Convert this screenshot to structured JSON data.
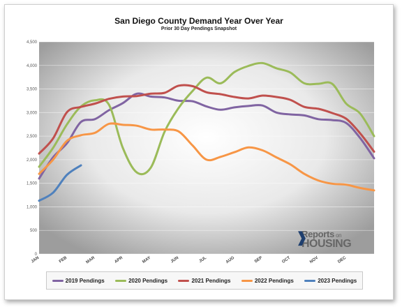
{
  "chart_data": {
    "type": "line",
    "title": "San Diego County Demand Year Over Year",
    "subtitle": "Prior 30 Day Pendings Snapshot",
    "ylim": [
      0,
      4500
    ],
    "yticks": [
      "0",
      "500",
      "1,000",
      "1,500",
      "2,000",
      "2,500",
      "3,000",
      "3,500",
      "4,000",
      "4,500"
    ],
    "xticks": [
      "JAN",
      "FEB",
      "MAR",
      "APR",
      "MAY",
      "JUN",
      "JUL",
      "AUG",
      "SEP",
      "OCT",
      "NOV",
      "DEC"
    ],
    "x_range": [
      0,
      12
    ],
    "grid": true,
    "legend_position": "bottom",
    "series": [
      {
        "name": "2019 Pendings",
        "color": "#8064A2",
        "x": [
          0,
          0.5,
          1,
          1.5,
          2,
          2.5,
          3,
          3.5,
          4,
          4.5,
          5,
          5.5,
          6,
          6.5,
          7,
          7.5,
          8,
          8.5,
          9,
          9.5,
          10,
          10.5,
          11,
          11.5,
          12
        ],
        "values": [
          1600,
          2050,
          2350,
          2800,
          2860,
          3050,
          3200,
          3400,
          3340,
          3320,
          3250,
          3240,
          3130,
          3060,
          3110,
          3140,
          3150,
          3000,
          2960,
          2940,
          2860,
          2840,
          2780,
          2460,
          2030
        ]
      },
      {
        "name": "2020 Pendings",
        "color": "#9BBB59",
        "x": [
          0,
          0.5,
          1,
          1.5,
          2,
          2.5,
          3,
          3.5,
          4,
          4.5,
          5,
          5.5,
          6,
          6.5,
          7,
          7.5,
          8,
          8.5,
          9,
          9.5,
          10,
          10.5,
          11,
          11.5,
          12
        ],
        "values": [
          1850,
          2250,
          2750,
          3130,
          3260,
          3170,
          2250,
          1730,
          1830,
          2600,
          3100,
          3460,
          3740,
          3620,
          3860,
          3990,
          4050,
          3940,
          3850,
          3620,
          3610,
          3610,
          3190,
          2980,
          2500
        ]
      },
      {
        "name": "2021 Pendings",
        "color": "#C0504D",
        "x": [
          0,
          0.5,
          1,
          1.5,
          2,
          2.5,
          3,
          3.5,
          4,
          4.5,
          5,
          5.5,
          6,
          6.5,
          7,
          7.5,
          8,
          8.5,
          9,
          9.5,
          10,
          10.5,
          11,
          11.5,
          12
        ],
        "values": [
          2130,
          2450,
          3010,
          3120,
          3190,
          3290,
          3340,
          3350,
          3400,
          3420,
          3570,
          3560,
          3430,
          3390,
          3330,
          3300,
          3360,
          3330,
          3270,
          3120,
          3080,
          2990,
          2870,
          2560,
          2170
        ]
      },
      {
        "name": "2022 Pendings",
        "color": "#F79646",
        "x": [
          0,
          0.5,
          1,
          1.5,
          2,
          2.5,
          3,
          3.5,
          4,
          4.5,
          5,
          5.5,
          6,
          6.5,
          7,
          7.5,
          8,
          8.5,
          9,
          9.5,
          10,
          10.5,
          11,
          11.5,
          12
        ],
        "values": [
          1700,
          2000,
          2400,
          2520,
          2570,
          2760,
          2740,
          2720,
          2640,
          2640,
          2600,
          2300,
          2000,
          2060,
          2160,
          2260,
          2200,
          2050,
          1900,
          1700,
          1560,
          1490,
          1470,
          1400,
          1350
        ]
      },
      {
        "name": "2023 Pendings",
        "color": "#4F81BD",
        "x": [
          0,
          0.5,
          1,
          1.5
        ],
        "values": [
          1130,
          1300,
          1680,
          1880
        ]
      }
    ]
  },
  "logo": {
    "top_text": "Reports",
    "top_small": "on",
    "bottom_text": "HOUSING"
  }
}
